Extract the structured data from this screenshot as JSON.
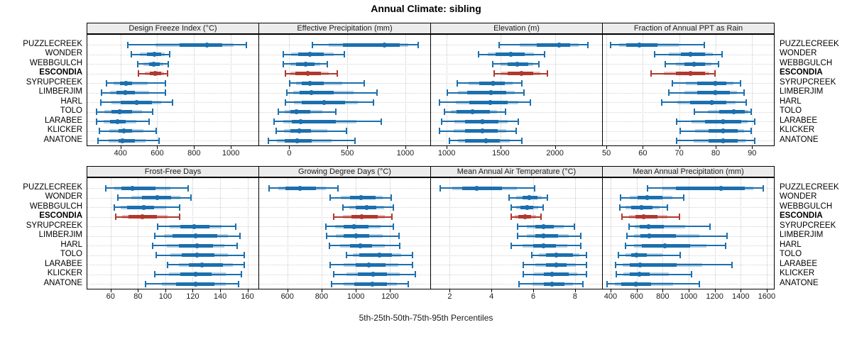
{
  "title": "Annual Climate: sibling",
  "caption": "5th-25th-50th-75th-95th Percentiles",
  "sites": [
    "PUZZLECREEK",
    "WONDER",
    "WEBBGULCH",
    "ESCONDIA",
    "SYRUPCREEK",
    "LIMBERJIM",
    "HARL",
    "TOLO",
    "LARABEE",
    "KLICKER",
    "ANATONE"
  ],
  "highlight_site": "ESCONDIA",
  "colors": {
    "series_blue": "#1b6fae",
    "highlight_red": "#b0382e",
    "header_bg": "#ececec",
    "panel_border": "#000000",
    "gridline": "#c9c9c9"
  },
  "chart_data": {
    "type": "scatter",
    "subtype": "dot-interval-trellis",
    "layout": "2 rows x 4 columns",
    "percentile_labels": [
      "5th",
      "25th",
      "50th",
      "75th",
      "95th"
    ],
    "grid": "dotted",
    "panels": [
      {
        "title": "Design Freeze Index (°C)",
        "row": 0,
        "col": 0,
        "xlim": [
          220,
          1150
        ],
        "ticks": [
          400,
          600,
          800,
          1000
        ],
        "values": {
          "PUZZLECREEK": [
            435,
            720,
            870,
            955,
            1090
          ],
          "WONDER": [
            455,
            545,
            585,
            620,
            670
          ],
          "WEBBGULCH": [
            490,
            555,
            582,
            612,
            662
          ],
          "ESCONDIA": [
            495,
            560,
            590,
            622,
            658
          ],
          "SYRUPCREEK": [
            320,
            398,
            430,
            465,
            650
          ],
          "LIMBERJIM": [
            295,
            380,
            425,
            478,
            648
          ],
          "HARL": [
            290,
            400,
            490,
            572,
            685
          ],
          "TOLO": [
            268,
            350,
            395,
            463,
            580
          ],
          "LARABEE": [
            268,
            345,
            385,
            430,
            558
          ],
          "KLICKER": [
            280,
            388,
            420,
            463,
            600
          ],
          "ANATONE": [
            275,
            388,
            410,
            478,
            612
          ]
        }
      },
      {
        "title": "Effective Precipitation (mm)",
        "row": 0,
        "col": 1,
        "xlim": [
          -260,
          1215
        ],
        "ticks": [
          0,
          500,
          1000
        ],
        "values": {
          "PUZZLECREEK": [
            190,
            460,
            820,
            950,
            1120
          ],
          "WONDER": [
            -60,
            75,
            175,
            300,
            480
          ],
          "WEBBGULCH": [
            -55,
            60,
            140,
            215,
            335
          ],
          "ESCONDIA": [
            -40,
            55,
            160,
            270,
            420
          ],
          "SYRUPCREEK": [
            0,
            110,
            180,
            300,
            650
          ],
          "LIMBERJIM": [
            -30,
            90,
            190,
            380,
            760
          ],
          "HARL": [
            -40,
            110,
            300,
            480,
            730
          ],
          "TOLO": [
            -100,
            10,
            60,
            180,
            410
          ],
          "LARABEE": [
            -140,
            20,
            100,
            400,
            800
          ],
          "KLICKER": [
            -120,
            10,
            85,
            185,
            500
          ],
          "ANATONE": [
            -185,
            -40,
            65,
            195,
            570
          ]
        }
      },
      {
        "title": "Elevation (m)",
        "row": 0,
        "col": 2,
        "xlim": [
          855,
          2435
        ],
        "ticks": [
          1000,
          1500,
          2000
        ],
        "values": {
          "PUZZLECREEK": [
            1480,
            1830,
            2040,
            2140,
            2310
          ],
          "WONDER": [
            1290,
            1450,
            1590,
            1720,
            1910
          ],
          "WEBBGULCH": [
            1420,
            1560,
            1650,
            1750,
            1860
          ],
          "ESCONDIA": [
            1430,
            1560,
            1690,
            1800,
            1940
          ],
          "SYRUPCREEK": [
            1090,
            1300,
            1430,
            1540,
            1700
          ],
          "LIMBERJIM": [
            1000,
            1190,
            1410,
            1550,
            1720
          ],
          "HARL": [
            930,
            1210,
            1400,
            1560,
            1780
          ],
          "TOLO": [
            970,
            1090,
            1240,
            1400,
            1550
          ],
          "LARABEE": [
            950,
            1170,
            1330,
            1480,
            1670
          ],
          "KLICKER": [
            930,
            1170,
            1330,
            1470,
            1650
          ],
          "ANATONE": [
            1020,
            1170,
            1360,
            1490,
            1700
          ]
        }
      },
      {
        "title": "Fraction of Annual PPT as Rain",
        "row": 0,
        "col": 3,
        "xlim": [
          49,
          96
        ],
        "ticks": [
          50,
          60,
          70,
          80,
          90
        ],
        "values": {
          "PUZZLECREEK": [
            51,
            55.5,
            59,
            64,
            77
          ],
          "WONDER": [
            63,
            70.5,
            73,
            77,
            82
          ],
          "WEBBGULCH": [
            66,
            71.5,
            74,
            77,
            81
          ],
          "ESCONDIA": [
            62,
            69,
            73,
            77,
            80
          ],
          "SYRUPCREEK": [
            68,
            75,
            80,
            83,
            87
          ],
          "LIMBERJIM": [
            67,
            75,
            80,
            84,
            88
          ],
          "HARL": [
            65,
            73,
            79,
            83,
            88.5
          ],
          "TOLO": [
            74,
            81,
            85,
            88,
            90
          ],
          "LARABEE": [
            69,
            77,
            82,
            87,
            91
          ],
          "KLICKER": [
            70,
            78,
            82,
            86,
            90
          ],
          "ANATONE": [
            69,
            78,
            82,
            86,
            91
          ]
        }
      },
      {
        "title": "Frost-Free Days",
        "row": 1,
        "col": 0,
        "xlim": [
          43,
          168
        ],
        "ticks": [
          60,
          80,
          100,
          120,
          140,
          160
        ],
        "values": {
          "PUZZLECREEK": [
            56,
            68,
            76,
            93,
            117
          ],
          "WONDER": [
            65,
            83,
            94,
            104,
            119
          ],
          "WEBBGULCH": [
            62,
            72,
            84,
            92,
            111
          ],
          "ESCONDIA": [
            63,
            73,
            83,
            94,
            111
          ],
          "SYRUPCREEK": [
            94,
            111,
            121,
            132,
            152
          ],
          "LIMBERJIM": [
            92,
            105,
            122,
            138,
            155
          ],
          "HARL": [
            90,
            110,
            123,
            135,
            153
          ],
          "TOLO": [
            93,
            112,
            123,
            136,
            158
          ],
          "LARABEE": [
            101,
            117,
            127,
            142,
            158
          ],
          "KLICKER": [
            92,
            111,
            122,
            134,
            156
          ],
          "ANATONE": [
            85,
            108,
            122,
            136,
            154
          ]
        }
      },
      {
        "title": "Growing Degree Days (°C)",
        "row": 1,
        "col": 1,
        "xlim": [
          435,
          1435
        ],
        "ticks": [
          600,
          800,
          1000,
          1200
        ],
        "values": {
          "PUZZLECREEK": [
            490,
            590,
            675,
            765,
            900
          ],
          "WONDER": [
            845,
            965,
            1030,
            1115,
            1210
          ],
          "WEBBGULCH": [
            920,
            1000,
            1065,
            1120,
            1225
          ],
          "ESCONDIA": [
            865,
            975,
            1035,
            1130,
            1215
          ],
          "SYRUPCREEK": [
            820,
            930,
            990,
            1075,
            1225
          ],
          "LIMBERJIM": [
            825,
            930,
            1000,
            1080,
            1255
          ],
          "HARL": [
            840,
            965,
            1025,
            1095,
            1260
          ],
          "TOLO": [
            940,
            1020,
            1140,
            1210,
            1335
          ],
          "LARABEE": [
            845,
            1000,
            1075,
            1175,
            1335
          ],
          "KLICKER": [
            865,
            1010,
            1100,
            1180,
            1350
          ],
          "ANATONE": [
            855,
            990,
            1095,
            1180,
            1310
          ]
        }
      },
      {
        "title": "Mean Annual Air Temperature (°C)",
        "row": 1,
        "col": 2,
        "xlim": [
          1.1,
          9.3
        ],
        "ticks": [
          2,
          4,
          6,
          8
        ],
        "values": {
          "PUZZLECREEK": [
            1.5,
            2.6,
            3.3,
            4.5,
            6.1
          ],
          "WONDER": [
            4.8,
            5.5,
            5.8,
            6.2,
            6.7
          ],
          "WEBBGULCH": [
            4.9,
            5.4,
            5.7,
            6.0,
            6.5
          ],
          "ESCONDIA": [
            4.9,
            5.3,
            5.6,
            5.9,
            6.4
          ],
          "SYRUPCREEK": [
            5.2,
            6.1,
            6.5,
            7.0,
            8.0
          ],
          "LIMBERJIM": [
            5.2,
            6.1,
            6.5,
            7.2,
            8.3
          ],
          "HARL": [
            4.9,
            6.0,
            6.5,
            7.1,
            8.3
          ],
          "TOLO": [
            5.9,
            6.6,
            7.1,
            7.9,
            8.6
          ],
          "LARABEE": [
            5.5,
            6.6,
            7.1,
            7.6,
            8.6
          ],
          "KLICKER": [
            5.5,
            6.5,
            6.9,
            7.7,
            8.6
          ],
          "ANATONE": [
            5.3,
            6.5,
            6.9,
            7.5,
            8.4
          ]
        }
      },
      {
        "title": "Mean Annual Precipitation (mm)",
        "row": 1,
        "col": 3,
        "xlim": [
          340,
          1655
        ],
        "ticks": [
          400,
          600,
          800,
          1000,
          1200,
          1400,
          1600
        ],
        "values": {
          "PUZZLECREEK": [
            680,
            900,
            1250,
            1430,
            1580
          ],
          "WONDER": [
            470,
            610,
            680,
            800,
            970
          ],
          "WEBBGULCH": [
            465,
            560,
            640,
            720,
            840
          ],
          "ESCONDIA": [
            480,
            590,
            655,
            760,
            935
          ],
          "SYRUPCREEK": [
            535,
            625,
            690,
            810,
            1170
          ],
          "LIMBERJIM": [
            520,
            630,
            700,
            900,
            1300
          ],
          "HARL": [
            510,
            640,
            820,
            1010,
            1290
          ],
          "TOLO": [
            455,
            560,
            600,
            680,
            940
          ],
          "LARABEE": [
            435,
            545,
            625,
            910,
            1340
          ],
          "KLICKER": [
            440,
            545,
            620,
            700,
            1030
          ],
          "ANATONE": [
            370,
            480,
            595,
            710,
            1090
          ]
        }
      }
    ]
  }
}
